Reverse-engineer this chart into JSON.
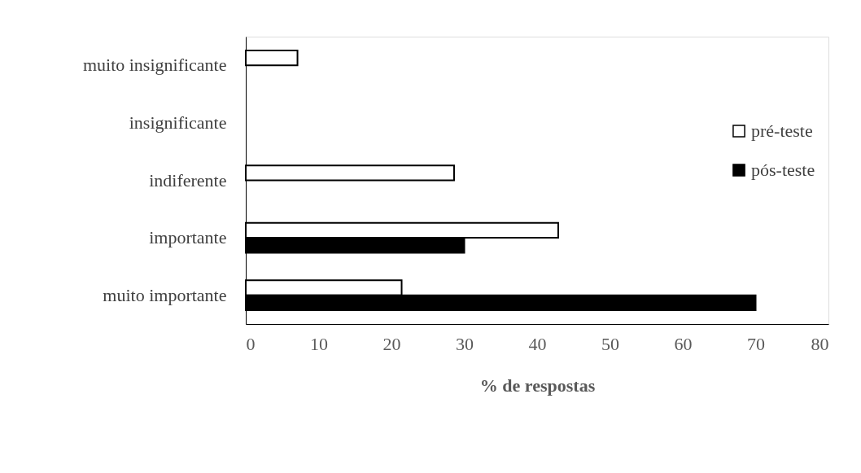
{
  "chart_data": {
    "type": "bar",
    "orientation": "horizontal",
    "xlabel": "% de respostas",
    "categories": [
      "muito insignificante",
      "insignificante",
      "indiferente",
      "importante",
      "muito importante"
    ],
    "series": [
      {
        "name": "pré-teste",
        "color": "#ffffff",
        "values": [
          7.1,
          null,
          28.6,
          42.9,
          21.4
        ]
      },
      {
        "name": "pós-teste",
        "color": "#000000",
        "values": [
          null,
          null,
          null,
          30,
          70
        ]
      }
    ],
    "xlim": [
      0,
      80
    ],
    "xticks": [
      0,
      10,
      20,
      30,
      40,
      50,
      60,
      70,
      80
    ],
    "grid": false,
    "legend": "right"
  }
}
